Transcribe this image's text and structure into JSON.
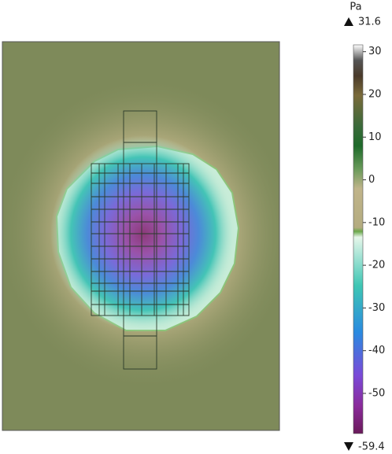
{
  "chart_data": {
    "type": "field",
    "unit": "Pa",
    "max": 31.6,
    "min": -59.4,
    "clim": [
      -59.4,
      31.6
    ],
    "cticks": [
      30,
      20,
      10,
      0,
      -10,
      -20,
      -30,
      -40,
      -50
    ]
  }
}
